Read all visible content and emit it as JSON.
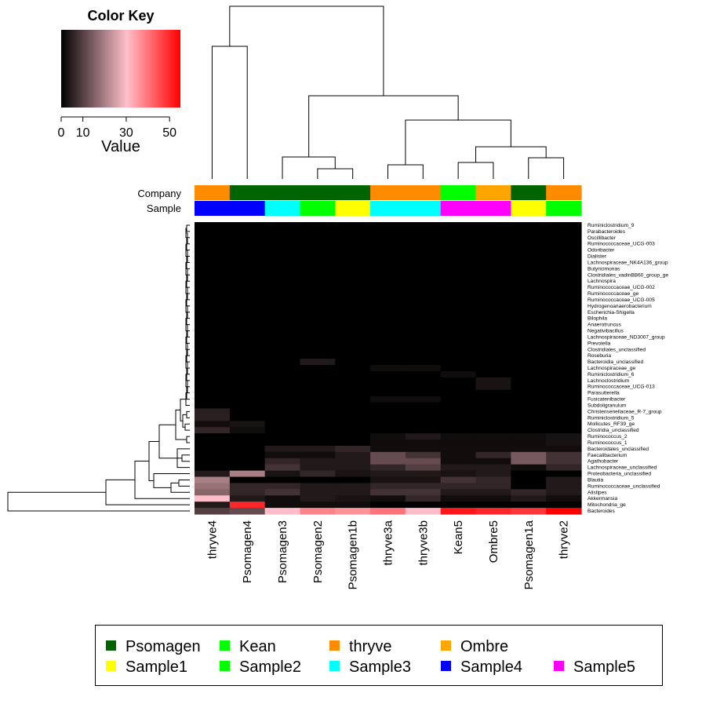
{
  "chart_data": {
    "type": "heatmap",
    "color_key": {
      "title": "Color Key",
      "xlabel": "Value",
      "ticks": [
        "0",
        "10",
        "30",
        "50"
      ],
      "range": [
        0,
        55
      ],
      "colors": [
        "#000000",
        "#ffc0cb",
        "#ff0000"
      ]
    },
    "annotation_rows": [
      {
        "label": "Company"
      },
      {
        "label": "Sample"
      }
    ],
    "columns": [
      {
        "name": "thryve4",
        "company": "thryve",
        "sample": "Sample4"
      },
      {
        "name": "Psomagen4",
        "company": "Psomagen",
        "sample": "Sample4"
      },
      {
        "name": "Psomagen3",
        "company": "Psomagen",
        "sample": "Sample3"
      },
      {
        "name": "Psomagen2",
        "company": "Psomagen",
        "sample": "Sample2"
      },
      {
        "name": "Psomagen1b",
        "company": "Psomagen",
        "sample": "Sample1"
      },
      {
        "name": "thryve3a",
        "company": "thryve",
        "sample": "Sample3"
      },
      {
        "name": "thryve3b",
        "company": "thryve",
        "sample": "Sample3"
      },
      {
        "name": "Kean5",
        "company": "Kean",
        "sample": "Sample5"
      },
      {
        "name": "Ombre5",
        "company": "Ombre",
        "sample": "Sample5"
      },
      {
        "name": "Psomagen1a",
        "company": "Psomagen",
        "sample": "Sample1"
      },
      {
        "name": "thryve2",
        "company": "thryve",
        "sample": "Sample2"
      }
    ],
    "rows": [
      "Ruminiclostridium_9",
      "Parabacteroides",
      "Oscillibacter",
      "Ruminococcaceae_UCG-003",
      "Odoribacter",
      "Dialister",
      "Lachnospiraceae_NK4A136_group",
      "Butyricimonas",
      "Clostridiales_vadinBB60_group_ge",
      "Lachnospira",
      "Ruminococcaceae_UCG-002",
      "Ruminococcaceae_ge",
      "Ruminococcaceae_UCG-005",
      "Hydrogenoanaerobacterium",
      "Escherichia-Shigella",
      "Bilophila",
      "Anaerotruncus",
      "Negativibacillus",
      "Lachnospiraceae_ND3007_group",
      "Prevotella",
      "Clostridiales_unclassified",
      "Roseburia",
      "Bacteroidia_unclassified",
      "Lachnospiraceae_ge",
      "Ruminiclostridium_6",
      "Lachnoclostridium",
      "Ruminococcaceae_UCG-013",
      "Parasutterella",
      "Fusicatenibacter",
      "Subdoligranulum",
      "Christensenellaceae_R-7_group",
      "Ruminiclostridium_5",
      "Mollicutes_RF39_ge",
      "Clostridia_unclassified",
      "Ruminococcus_2",
      "Ruminococcus_1",
      "Bacteroidales_unclassified",
      "Faecalibacterium",
      "Agathobacter",
      "Lachnospiraceae_unclassified",
      "Proteobacteria_unclassified",
      "Blautia",
      "Ruminococcaceae_unclassified",
      "Alistipes",
      "Akkermansia",
      "Mitochondria_ge",
      "Bacteroides"
    ],
    "values": [
      [
        0,
        0,
        0,
        0,
        0,
        0,
        0,
        0,
        0,
        0,
        0
      ],
      [
        0,
        0,
        0,
        0,
        0,
        0,
        0,
        0,
        0,
        0,
        0
      ],
      [
        0,
        0,
        0,
        0,
        0,
        0,
        0,
        0,
        0,
        0,
        0
      ],
      [
        0,
        0,
        0,
        0,
        0,
        0,
        0,
        0,
        0,
        0,
        0
      ],
      [
        0,
        0,
        0,
        0,
        0,
        0,
        0,
        0,
        0,
        0,
        0
      ],
      [
        0,
        0,
        0,
        0,
        0,
        0,
        0,
        0,
        0,
        0,
        0
      ],
      [
        0,
        0,
        0,
        0,
        0,
        0,
        0,
        0,
        0,
        0,
        0
      ],
      [
        0,
        0,
        0,
        0,
        0,
        0,
        0,
        0,
        0,
        0,
        0
      ],
      [
        0,
        0,
        0,
        0,
        0,
        0,
        0,
        0,
        0,
        0,
        0
      ],
      [
        0,
        0,
        0,
        0,
        0,
        0,
        0,
        0,
        0,
        0,
        0
      ],
      [
        0,
        0,
        0,
        0,
        0,
        0,
        0,
        0,
        0,
        0,
        0
      ],
      [
        0,
        0,
        0,
        0,
        0,
        0,
        0,
        0,
        0,
        0,
        0
      ],
      [
        0,
        0,
        0,
        0,
        0,
        0,
        0,
        0,
        0,
        0,
        0
      ],
      [
        0,
        0,
        0,
        0,
        0,
        0,
        0,
        0,
        0,
        0,
        0
      ],
      [
        0,
        0,
        0,
        0,
        0,
        0,
        0,
        0,
        0,
        0,
        0
      ],
      [
        0,
        0,
        0,
        0,
        0,
        0,
        0,
        0,
        0,
        0,
        0
      ],
      [
        0,
        0,
        0,
        0,
        0,
        0,
        0,
        0,
        0,
        0,
        0
      ],
      [
        0,
        0,
        0,
        0,
        0,
        0,
        0,
        0,
        0,
        0,
        0
      ],
      [
        0,
        0,
        0,
        0,
        0,
        0,
        0,
        0,
        0,
        0,
        0
      ],
      [
        0,
        0,
        0,
        0,
        0,
        0,
        0,
        0,
        0,
        0,
        0
      ],
      [
        0,
        0,
        0,
        0,
        0,
        0,
        0,
        0,
        0,
        0,
        0
      ],
      [
        0,
        0,
        0,
        0,
        0,
        0,
        0,
        0,
        0,
        0,
        0
      ],
      [
        0,
        0,
        0,
        4,
        0,
        0,
        0,
        0,
        0,
        0,
        0
      ],
      [
        0,
        0,
        0,
        0,
        0,
        2,
        2,
        0,
        0,
        0,
        0
      ],
      [
        0,
        0,
        0,
        0,
        0,
        0,
        0,
        2,
        0,
        0,
        0
      ],
      [
        0,
        0,
        0,
        0,
        0,
        0,
        0,
        0,
        3,
        0,
        0
      ],
      [
        0,
        0,
        0,
        0,
        0,
        0,
        0,
        0,
        3,
        0,
        0
      ],
      [
        0,
        0,
        0,
        0,
        0,
        0,
        0,
        0,
        0,
        0,
        0
      ],
      [
        0,
        0,
        0,
        0,
        0,
        2,
        2,
        0,
        0,
        0,
        0
      ],
      [
        0,
        0,
        0,
        0,
        0,
        0,
        0,
        0,
        0,
        0,
        0
      ],
      [
        5,
        0,
        0,
        0,
        0,
        0,
        0,
        0,
        0,
        0,
        0
      ],
      [
        5,
        0,
        0,
        0,
        0,
        0,
        0,
        0,
        0,
        0,
        0
      ],
      [
        2,
        3,
        0,
        0,
        0,
        0,
        0,
        0,
        0,
        0,
        0
      ],
      [
        6,
        2,
        0,
        0,
        0,
        0,
        0,
        0,
        0,
        0,
        0
      ],
      [
        0,
        0,
        0,
        0,
        0,
        2,
        4,
        2,
        2,
        2,
        3
      ],
      [
        0,
        0,
        0,
        0,
        0,
        2,
        2,
        2,
        2,
        2,
        3
      ],
      [
        0,
        0,
        4,
        4,
        6,
        2,
        2,
        2,
        2,
        2,
        2
      ],
      [
        0,
        0,
        2,
        2,
        4,
        12,
        8,
        2,
        6,
        14,
        8
      ],
      [
        0,
        0,
        6,
        4,
        4,
        12,
        12,
        2,
        2,
        14,
        8
      ],
      [
        0,
        0,
        8,
        4,
        4,
        6,
        10,
        4,
        4,
        2,
        6
      ],
      [
        4,
        20,
        3,
        6,
        3,
        4,
        4,
        3,
        4,
        0,
        0
      ],
      [
        20,
        0,
        0,
        0,
        0,
        3,
        3,
        8,
        6,
        0,
        4
      ],
      [
        18,
        6,
        6,
        4,
        4,
        6,
        6,
        6,
        6,
        0,
        4
      ],
      [
        16,
        6,
        8,
        4,
        4,
        8,
        8,
        4,
        4,
        6,
        4
      ],
      [
        30,
        4,
        2,
        4,
        3,
        2,
        6,
        2,
        2,
        4,
        2
      ],
      [
        4,
        50,
        2,
        2,
        2,
        0,
        0,
        0,
        0,
        0,
        0
      ],
      [
        10,
        12,
        30,
        38,
        36,
        40,
        30,
        52,
        50,
        48,
        55
      ]
    ],
    "legend": [
      {
        "label": "Psomagen",
        "color": "#006400"
      },
      {
        "label": "Kean",
        "color": "#00ff00"
      },
      {
        "label": "thryve",
        "color": "#ff8c00"
      },
      {
        "label": "Ombre",
        "color": "#ffa500"
      },
      {
        "label": "Sample1",
        "color": "#ffff00"
      },
      {
        "label": "Sample2",
        "color": "#00ff00"
      },
      {
        "label": "Sample3",
        "color": "#00ffff"
      },
      {
        "label": "Sample4",
        "color": "#0000ff"
      },
      {
        "label": "Sample5",
        "color": "#ff00ff"
      }
    ],
    "company_colors": {
      "Psomagen": "#006400",
      "Kean": "#00ff00",
      "thryve": "#ff8c00",
      "Ombre": "#ffa500"
    },
    "sample_colors": {
      "Sample1": "#ffff00",
      "Sample2": "#00ff00",
      "Sample3": "#00ffff",
      "Sample4": "#0000ff",
      "Sample5": "#ff00ff"
    }
  }
}
